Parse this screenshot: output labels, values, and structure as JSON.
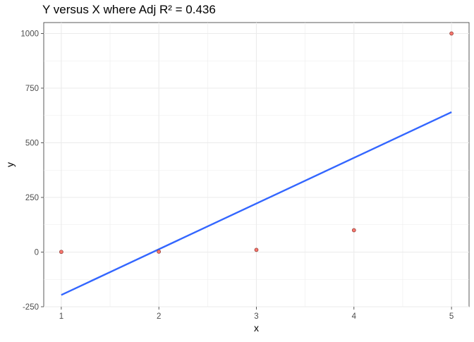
{
  "chart_data": {
    "type": "scatter",
    "title": "Y versus X where Adj R² = 0.436",
    "xlabel": "x",
    "ylabel": "y",
    "xlim": [
      0.82,
      5.18
    ],
    "ylim": [
      -250,
      1050
    ],
    "x_ticks": [
      1,
      2,
      3,
      4,
      5
    ],
    "y_ticks": [
      -250,
      0,
      250,
      500,
      750,
      1000
    ],
    "grid": true,
    "points": {
      "x": [
        1,
        2,
        3,
        4,
        5
      ],
      "y": [
        1,
        2,
        10,
        100,
        1000
      ],
      "color": "#f8766d"
    },
    "fit_line": {
      "type": "linear",
      "x": [
        1,
        5
      ],
      "y": [
        -196.1,
        640.3
      ],
      "color": "#3366ff"
    }
  }
}
